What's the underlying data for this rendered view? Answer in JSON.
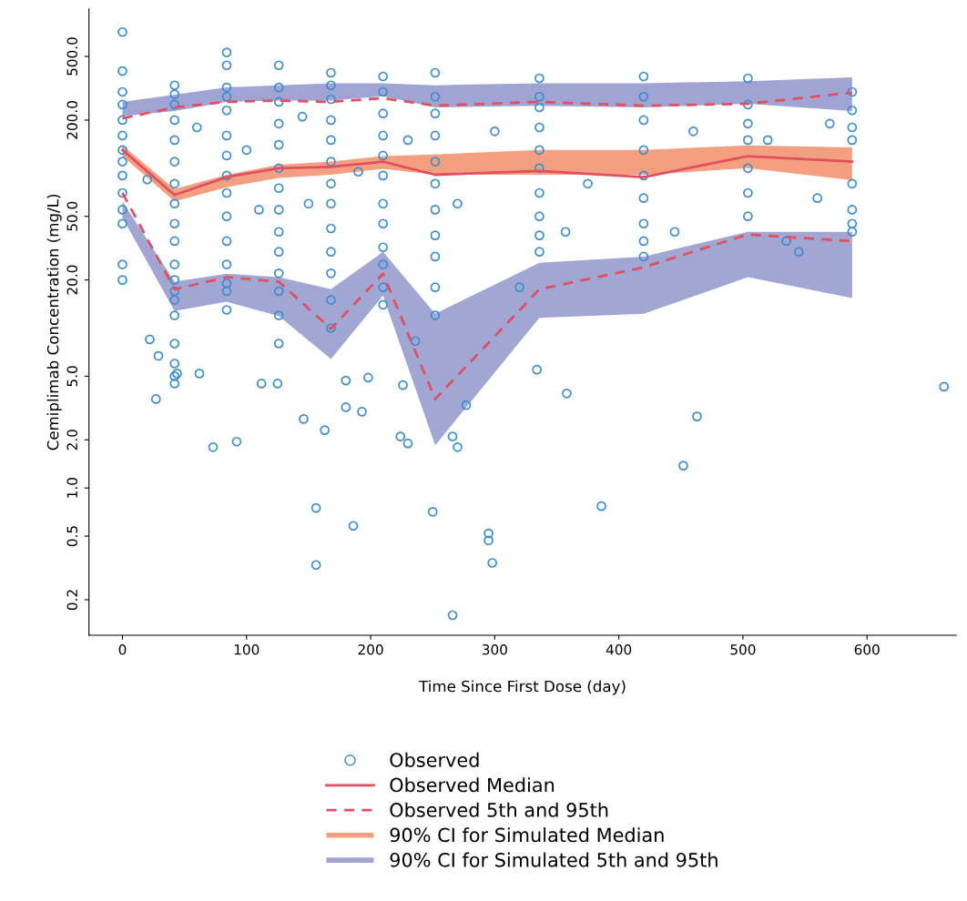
{
  "chart_data": {
    "type": "scatter",
    "xlabel": "Time Since First Dose (day)",
    "ylabel": "Cemiplimab Concentration (mg/L)",
    "log": "y",
    "xlim": [
      -27,
      672
    ],
    "xticks": [
      0,
      100,
      200,
      300,
      400,
      500,
      600
    ],
    "ylim": [
      0.12,
      990
    ],
    "yticks": [
      0.2,
      0.5,
      {
        "value": 1,
        "label": "1.0"
      },
      {
        "value": 2,
        "label": "2.0"
      },
      {
        "value": 5,
        "label": "5.0"
      },
      {
        "value": 20,
        "label": "20.0"
      },
      {
        "value": 50,
        "label": "50.0"
      },
      {
        "value": 200,
        "label": "200.0"
      },
      {
        "value": 500,
        "label": "500.0"
      }
    ],
    "grid": false,
    "legend": "bottom",
    "series": [
      {
        "name": "Observed",
        "marker": "circle",
        "color": "#3a8dd0",
        "x": [
          0,
          0,
          0,
          0,
          0,
          0,
          0,
          0,
          0,
          0,
          0,
          0,
          0,
          0,
          42,
          42,
          42,
          42,
          42,
          42,
          42,
          42,
          42,
          42,
          42,
          42,
          42,
          42,
          42,
          42,
          42,
          42,
          42,
          84,
          84,
          84,
          84,
          84,
          84,
          84,
          84,
          84,
          84,
          84,
          84,
          84,
          84,
          84,
          126,
          126,
          126,
          126,
          126,
          126,
          126,
          126,
          126,
          126,
          126,
          126,
          126,
          126,
          168,
          168,
          168,
          168,
          168,
          168,
          168,
          168,
          168,
          168,
          168,
          168,
          168,
          210,
          210,
          210,
          210,
          210,
          210,
          210,
          210,
          210,
          210,
          210,
          210,
          252,
          252,
          252,
          252,
          252,
          252,
          252,
          252,
          252,
          252,
          252,
          336,
          336,
          336,
          336,
          336,
          336,
          336,
          336,
          336,
          336,
          420,
          420,
          420,
          420,
          420,
          420,
          420,
          420,
          420,
          504,
          504,
          504,
          504,
          504,
          504,
          504,
          588,
          588,
          588,
          588,
          588,
          588,
          588,
          588,
          20,
          60,
          100,
          110,
          145,
          150,
          190,
          230,
          270,
          300,
          320,
          357,
          375,
          445,
          460,
          520,
          535,
          545,
          560,
          570,
          156,
          156,
          186,
          250,
          266,
          295,
          295,
          298,
          386,
          452,
          463,
          662,
          73,
          92,
          27,
          163,
          146,
          193,
          180,
          224,
          230,
          266,
          270,
          277,
          334,
          358,
          22,
          29,
          44,
          62,
          112,
          125,
          180,
          198,
          226,
          236
        ],
        "values": [
          710,
          405,
          300,
          250,
          200,
          160,
          130,
          110,
          90,
          70,
          55,
          45,
          25,
          20,
          330,
          290,
          250,
          200,
          150,
          110,
          80,
          60,
          45,
          35,
          25,
          20,
          17,
          15,
          12,
          8,
          6,
          5,
          4.5,
          530,
          440,
          320,
          280,
          230,
          160,
          120,
          90,
          70,
          50,
          35,
          25,
          19,
          17,
          13,
          440,
          320,
          260,
          190,
          140,
          100,
          75,
          55,
          40,
          30,
          22,
          17,
          12,
          8,
          395,
          330,
          270,
          200,
          150,
          110,
          80,
          60,
          42,
          30,
          22,
          15,
          10,
          375,
          300,
          220,
          160,
          120,
          90,
          60,
          45,
          32,
          25,
          18,
          14,
          395,
          280,
          220,
          160,
          110,
          80,
          55,
          38,
          28,
          18,
          12,
          365,
          280,
          240,
          180,
          130,
          100,
          70,
          50,
          38,
          30,
          375,
          280,
          200,
          130,
          90,
          65,
          45,
          35,
          28,
          365,
          250,
          190,
          150,
          100,
          70,
          50,
          300,
          230,
          180,
          150,
          80,
          55,
          45,
          40,
          85,
          180,
          130,
          55,
          210,
          60,
          95,
          150,
          60,
          170,
          18,
          40,
          80,
          40,
          170,
          150,
          35,
          30,
          65,
          190,
          0.75,
          0.33,
          0.58,
          0.71,
          0.16,
          0.52,
          0.47,
          0.34,
          0.77,
          1.38,
          2.8,
          4.3,
          1.8,
          1.95,
          3.6,
          2.3,
          2.7,
          3.0,
          3.2,
          2.1,
          1.9,
          2.1,
          1.8,
          3.3,
          5.5,
          3.9,
          8.5,
          6.7,
          5.2,
          5.2,
          4.5,
          4.5,
          4.7,
          4.9,
          4.4,
          8.3
        ]
      },
      {
        "name": "Observed Median",
        "type": "line",
        "line_style": "solid",
        "color": "#e05060",
        "x": [
          0,
          42,
          84,
          126,
          168,
          210,
          252,
          336,
          420,
          504,
          588
        ],
        "values": [
          130,
          68,
          88,
          100,
          102,
          110,
          91,
          96,
          88,
          119,
          110
        ]
      },
      {
        "name": "Observed 5th and 95th",
        "type": "line",
        "line_style": "dashed",
        "color": "#e05060",
        "x": [
          0,
          42,
          84,
          126,
          168,
          210,
          252,
          336,
          420,
          504,
          588
        ],
        "values": [
          205,
          240,
          260,
          265,
          260,
          274,
          246,
          260,
          246,
          253,
          297
        ]
      },
      {
        "type": "line",
        "line_style": "dashed",
        "color": "#e05060",
        "x": [
          0,
          42,
          84,
          126,
          168,
          210,
          252,
          336,
          420,
          504,
          588
        ],
        "values": [
          70,
          17.5,
          20.8,
          19.5,
          9.9,
          21.9,
          3.6,
          17.5,
          24,
          38.5,
          35
        ]
      },
      {
        "name": "90% CI for Simulated Median",
        "type": "area",
        "color": "#f4a080",
        "x": [
          0,
          42,
          84,
          126,
          168,
          210,
          252,
          336,
          420,
          504,
          588
        ],
        "values": [
          null,
          null,
          null,
          null,
          null,
          null,
          null,
          null,
          null,
          null,
          null
        ],
        "lower": [
          119,
          62,
          76,
          87,
          91,
          99,
          91,
          91,
          91,
          100,
          84
        ],
        "upper": [
          139,
          74,
          91,
          105,
          110,
          119,
          122,
          130,
          130,
          139,
          135
        ]
      },
      {
        "name": "90% CI for Simulated 5th and 95th",
        "type": "area",
        "color": "#a0a4d2",
        "x": [
          0,
          42,
          84,
          126,
          168,
          210,
          252,
          336,
          420,
          504,
          588
        ],
        "values": [
          null,
          null,
          null,
          null,
          null,
          null,
          null,
          null,
          null,
          null,
          null
        ],
        "lower": [
          211,
          228,
          260,
          265,
          265,
          282,
          240,
          246,
          240,
          253,
          228
        ],
        "upper": [
          260,
          288,
          320,
          330,
          340,
          340,
          330,
          340,
          340,
          350,
          370
        ]
      },
      {
        "type": "area",
        "color": "#a2a6d3",
        "x": [
          0,
          42,
          84,
          126,
          168,
          210,
          252,
          336,
          420,
          504,
          588
        ],
        "values": [
          null,
          null,
          null,
          null,
          null,
          null,
          null,
          null,
          null,
          null,
          null
        ],
        "lower": [
          49,
          12.8,
          14.6,
          11.9,
          6.4,
          16,
          1.85,
          11.6,
          12.3,
          20.8,
          15.4
        ],
        "upper": [
          62,
          19.5,
          21.9,
          20.8,
          17.5,
          30,
          12.3,
          25.6,
          28,
          40,
          40
        ]
      }
    ]
  }
}
